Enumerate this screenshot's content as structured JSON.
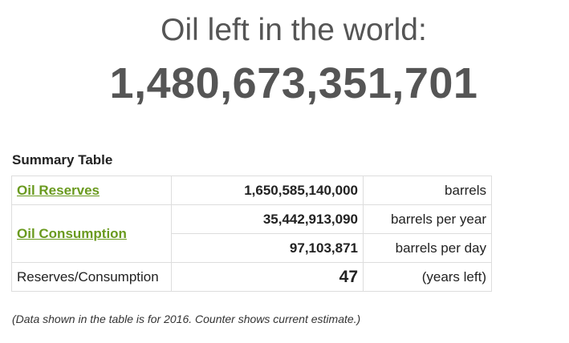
{
  "header": {
    "title": "Oil left in the world:",
    "counter": "1,480,673,351,701"
  },
  "summary": {
    "title": "Summary Table",
    "rows": [
      {
        "label": "Oil Reserves",
        "value": "1,650,585,140,000",
        "unit": "barrels"
      },
      {
        "label": "Oil Consumption",
        "value": "35,442,913,090",
        "unit": "barrels per year"
      },
      {
        "label": "",
        "value": "97,103,871",
        "unit": "barrels per day"
      },
      {
        "label": "Reserves/Consumption",
        "value": "47",
        "unit": "(years left)"
      }
    ]
  },
  "footnote": "(Data shown in the table is for 2016. Counter shows current estimate.)",
  "colors": {
    "link": "#6a9a1f",
    "headline": "#555555",
    "border": "#dddddd"
  }
}
